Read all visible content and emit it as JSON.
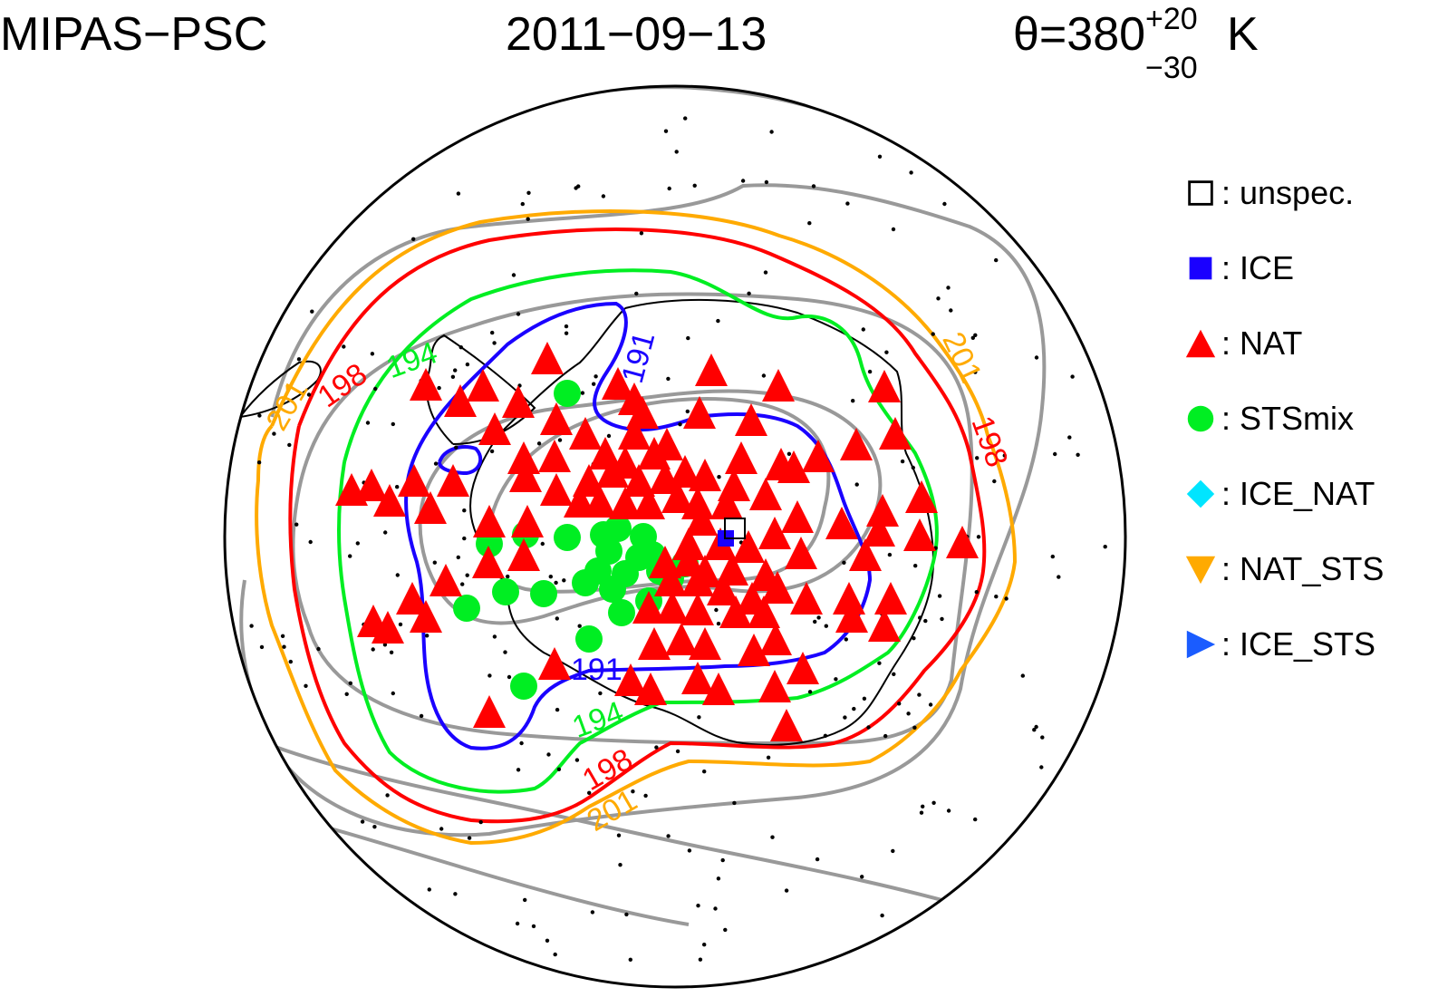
{
  "header": {
    "instrument": "MIPAS−PSC",
    "date": "2011−09−13",
    "theta_prefix": "θ=380",
    "theta_sup": "+20",
    "theta_sub": "−30",
    "theta_unit": "K"
  },
  "legend": {
    "items": [
      {
        "symbol": "open-square",
        "color": "#000000",
        "label": "unspec."
      },
      {
        "symbol": "filled-square",
        "color": "#1a00ff",
        "label": "ICE"
      },
      {
        "symbol": "triangle-up",
        "color": "#ff0000",
        "label": "NAT"
      },
      {
        "symbol": "circle",
        "color": "#00ee22",
        "label": "STSmix"
      },
      {
        "symbol": "diamond",
        "color": "#00e5ff",
        "label": "ICE_NAT"
      },
      {
        "symbol": "triangle-down",
        "color": "#ffaa00",
        "label": "NAT_STS"
      },
      {
        "symbol": "triangle-right",
        "color": "#1a5cff",
        "label": "ICE_STS"
      }
    ]
  },
  "contours": [
    {
      "level": "191",
      "color": "#1a00ff"
    },
    {
      "level": "194",
      "color": "#00ee22"
    },
    {
      "level": "198",
      "color": "#ff0000"
    },
    {
      "level": "201",
      "color": "#ffaa00"
    }
  ],
  "colors": {
    "background_contour": "#999999",
    "coastline": "#000000",
    "nat": "#ff0000",
    "stsmix": "#00ee22",
    "ice": "#1a00ff"
  },
  "observations": {
    "nat_count": 150,
    "stsmix_count": 24,
    "ice_count": 1,
    "unspec_count": 1
  }
}
